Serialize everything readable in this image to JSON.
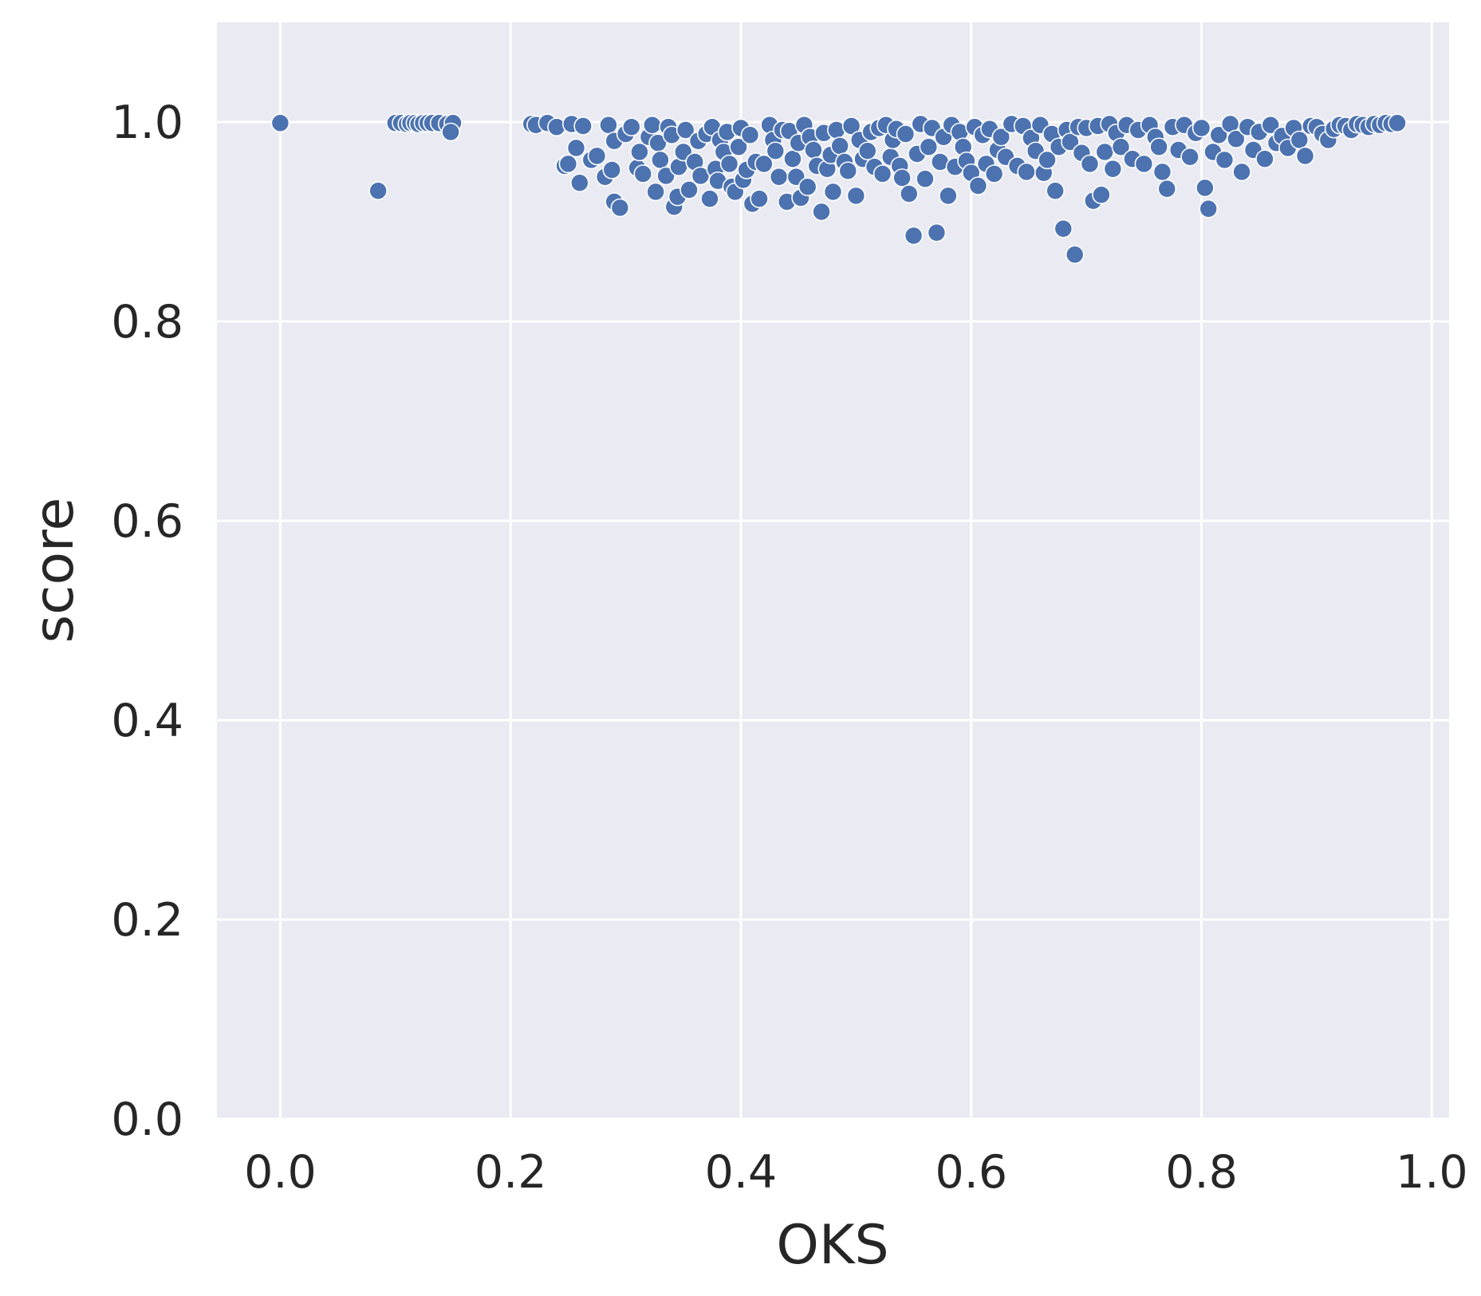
{
  "chart_data": {
    "type": "scatter",
    "title": "",
    "xlabel": "OKS",
    "ylabel": "score",
    "xlim": [
      -0.055,
      1.015
    ],
    "ylim": [
      0.0,
      1.1
    ],
    "x_ticks": [
      0.0,
      0.2,
      0.4,
      0.6,
      0.8,
      1.0
    ],
    "x_tick_labels": [
      "0.0",
      "0.2",
      "0.4",
      "0.6",
      "0.8",
      "1.0"
    ],
    "y_ticks": [
      0.0,
      0.2,
      0.4,
      0.6,
      0.8,
      1.0
    ],
    "y_tick_labels": [
      "0.0",
      "0.2",
      "0.4",
      "0.6",
      "0.8",
      "1.0"
    ],
    "grid": true,
    "legend": "none",
    "colors": {
      "background": "#eaeaf2",
      "grid": "#ffffff",
      "point": "#4c72b0",
      "point_edge": "#ffffff",
      "text": "#262626"
    },
    "x": [
      0.0,
      0.085,
      0.1,
      0.105,
      0.11,
      0.113,
      0.117,
      0.12,
      0.124,
      0.128,
      0.132,
      0.138,
      0.145,
      0.15,
      0.148,
      0.218,
      0.222,
      0.232,
      0.24,
      0.247,
      0.25,
      0.253,
      0.257,
      0.26,
      0.263,
      0.27,
      0.275,
      0.282,
      0.285,
      0.288,
      0.29,
      0.29,
      0.295,
      0.3,
      0.305,
      0.31,
      0.312,
      0.315,
      0.32,
      0.323,
      0.326,
      0.328,
      0.33,
      0.335,
      0.337,
      0.34,
      0.342,
      0.345,
      0.346,
      0.35,
      0.352,
      0.355,
      0.36,
      0.363,
      0.365,
      0.37,
      0.373,
      0.375,
      0.378,
      0.38,
      0.382,
      0.385,
      0.388,
      0.39,
      0.392,
      0.395,
      0.398,
      0.4,
      0.402,
      0.405,
      0.408,
      0.41,
      0.413,
      0.416,
      0.42,
      0.425,
      0.428,
      0.43,
      0.433,
      0.436,
      0.44,
      0.442,
      0.445,
      0.448,
      0.45,
      0.452,
      0.455,
      0.458,
      0.46,
      0.463,
      0.466,
      0.47,
      0.472,
      0.475,
      0.478,
      0.48,
      0.483,
      0.486,
      0.49,
      0.493,
      0.496,
      0.5,
      0.503,
      0.506,
      0.51,
      0.513,
      0.516,
      0.52,
      0.523,
      0.526,
      0.53,
      0.532,
      0.535,
      0.538,
      0.54,
      0.543,
      0.546,
      0.55,
      0.553,
      0.556,
      0.56,
      0.563,
      0.566,
      0.57,
      0.573,
      0.576,
      0.58,
      0.583,
      0.586,
      0.59,
      0.593,
      0.596,
      0.6,
      0.603,
      0.606,
      0.61,
      0.613,
      0.616,
      0.62,
      0.623,
      0.626,
      0.63,
      0.635,
      0.64,
      0.645,
      0.648,
      0.652,
      0.656,
      0.66,
      0.663,
      0.666,
      0.67,
      0.673,
      0.676,
      0.68,
      0.683,
      0.686,
      0.69,
      0.693,
      0.696,
      0.7,
      0.703,
      0.706,
      0.71,
      0.713,
      0.716,
      0.72,
      0.723,
      0.726,
      0.73,
      0.735,
      0.74,
      0.745,
      0.75,
      0.755,
      0.76,
      0.763,
      0.766,
      0.77,
      0.775,
      0.78,
      0.785,
      0.79,
      0.795,
      0.8,
      0.803,
      0.806,
      0.81,
      0.815,
      0.82,
      0.825,
      0.83,
      0.835,
      0.84,
      0.845,
      0.85,
      0.855,
      0.86,
      0.865,
      0.87,
      0.875,
      0.88,
      0.885,
      0.89,
      0.895,
      0.9,
      0.905,
      0.91,
      0.915,
      0.92,
      0.925,
      0.93,
      0.935,
      0.94,
      0.945,
      0.95,
      0.955,
      0.96,
      0.965,
      0.97
    ],
    "y": [
      0.999,
      0.931,
      0.999,
      0.999,
      0.998,
      0.999,
      0.999,
      0.998,
      0.999,
      0.999,
      0.999,
      0.999,
      0.998,
      0.999,
      0.99,
      0.998,
      0.997,
      0.999,
      0.995,
      0.956,
      0.958,
      0.998,
      0.974,
      0.939,
      0.996,
      0.962,
      0.966,
      0.945,
      0.997,
      0.952,
      0.92,
      0.981,
      0.914,
      0.988,
      0.995,
      0.954,
      0.97,
      0.948,
      0.985,
      0.997,
      0.93,
      0.979,
      0.962,
      0.946,
      0.995,
      0.987,
      0.915,
      0.925,
      0.955,
      0.97,
      0.992,
      0.932,
      0.96,
      0.981,
      0.946,
      0.988,
      0.923,
      0.995,
      0.953,
      0.941,
      0.982,
      0.97,
      0.99,
      0.958,
      0.935,
      0.93,
      0.975,
      0.994,
      0.942,
      0.952,
      0.987,
      0.918,
      0.96,
      0.923,
      0.958,
      0.997,
      0.982,
      0.971,
      0.945,
      0.992,
      0.92,
      0.991,
      0.963,
      0.945,
      0.979,
      0.924,
      0.997,
      0.935,
      0.985,
      0.972,
      0.956,
      0.91,
      0.989,
      0.953,
      0.967,
      0.93,
      0.992,
      0.976,
      0.96,
      0.951,
      0.996,
      0.926,
      0.982,
      0.963,
      0.971,
      0.99,
      0.955,
      0.994,
      0.948,
      0.997,
      0.965,
      0.982,
      0.993,
      0.956,
      0.944,
      0.988,
      0.928,
      0.886,
      0.968,
      0.998,
      0.943,
      0.975,
      0.994,
      0.889,
      0.96,
      0.985,
      0.926,
      0.997,
      0.955,
      0.99,
      0.975,
      0.961,
      0.949,
      0.995,
      0.936,
      0.987,
      0.958,
      0.993,
      0.948,
      0.972,
      0.985,
      0.965,
      0.998,
      0.956,
      0.996,
      0.95,
      0.984,
      0.971,
      0.997,
      0.949,
      0.962,
      0.988,
      0.931,
      0.975,
      0.893,
      0.992,
      0.98,
      0.867,
      0.995,
      0.969,
      0.994,
      0.958,
      0.921,
      0.996,
      0.927,
      0.97,
      0.998,
      0.953,
      0.989,
      0.975,
      0.997,
      0.963,
      0.992,
      0.958,
      0.997,
      0.985,
      0.975,
      0.95,
      0.933,
      0.995,
      0.972,
      0.997,
      0.965,
      0.989,
      0.994,
      0.934,
      0.913,
      0.97,
      0.987,
      0.962,
      0.998,
      0.983,
      0.95,
      0.995,
      0.972,
      0.99,
      0.963,
      0.997,
      0.979,
      0.986,
      0.974,
      0.994,
      0.982,
      0.966,
      0.996,
      0.995,
      0.988,
      0.982,
      0.993,
      0.997,
      0.996,
      0.992,
      0.998,
      0.997,
      0.995,
      0.998,
      0.997,
      0.999,
      0.998,
      0.999
    ]
  }
}
